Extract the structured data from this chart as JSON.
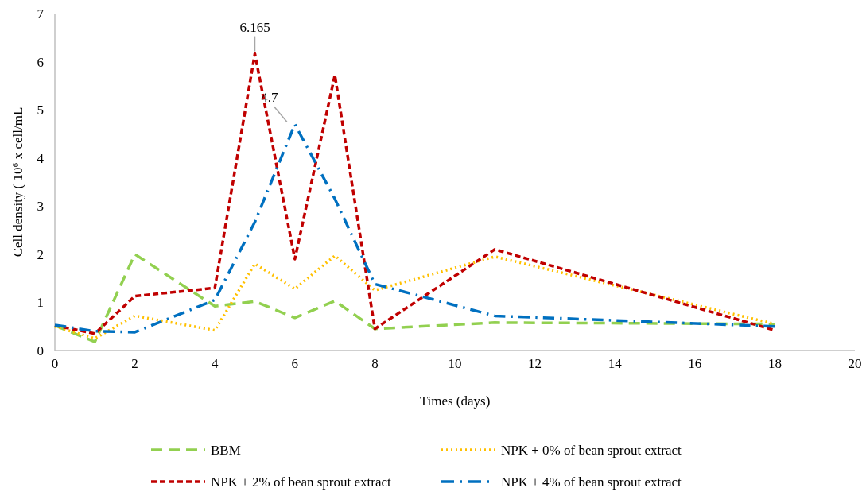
{
  "chart_data": {
    "type": "line",
    "xlabel": "Times (days)",
    "ylabel": "Cell density ( 10⁶ x cell/mL",
    "x": [
      0,
      1,
      2,
      4,
      5,
      6,
      7,
      8,
      11,
      18
    ],
    "xlim": [
      0,
      20
    ],
    "xticks": [
      0,
      2,
      4,
      6,
      8,
      10,
      12,
      14,
      16,
      18,
      20
    ],
    "ylim": [
      0,
      7
    ],
    "yticks": [
      0,
      1,
      2,
      3,
      4,
      5,
      6,
      7
    ],
    "grid": false,
    "legend": "bottom",
    "series": [
      {
        "name": "BBM",
        "color": "#92d050",
        "line_style": "dashed",
        "values": [
          0.52,
          0.18,
          2.0,
          0.92,
          1.02,
          0.68,
          1.03,
          0.45,
          0.58,
          0.55
        ]
      },
      {
        "name": "NPK + 0% of bean sprout extract",
        "color": "#ffc000",
        "line_style": "dotted",
        "values": [
          0.5,
          0.25,
          0.72,
          0.42,
          1.8,
          1.28,
          1.97,
          1.25,
          1.95,
          0.55
        ]
      },
      {
        "name": "NPK + 2% of bean sprout extract",
        "color": "#c00000",
        "line_style": "shortdash",
        "values": [
          0.52,
          0.35,
          1.13,
          1.3,
          6.165,
          1.9,
          5.72,
          0.45,
          2.1,
          0.42
        ]
      },
      {
        "name": "NPK + 4% of bean sprout extract",
        "color": "#0070c0",
        "line_style": "dashdot",
        "values": [
          0.53,
          0.4,
          0.38,
          1.05,
          2.67,
          4.7,
          3.15,
          1.38,
          0.72,
          0.5
        ]
      }
    ],
    "annotations": [
      {
        "text": "6.165",
        "x": 5,
        "y": 6.165
      },
      {
        "text": "4.7",
        "x": 6,
        "y": 4.7
      }
    ]
  }
}
